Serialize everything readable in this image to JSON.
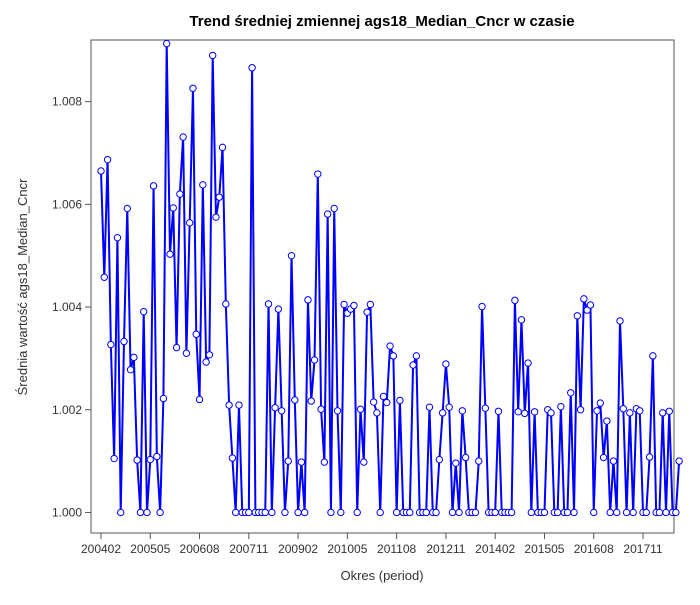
{
  "chart_data": {
    "type": "line",
    "title": "Trend średniej zmiennej ags18_Median_Cncr w czasie",
    "xlabel": "Okres (period)",
    "ylabel": "Średnia wartość ags18_Median_Cncr",
    "ylim": [
      0.9996,
      1.0092
    ],
    "yticks": [
      "1.000",
      "1.002",
      "1.004",
      "1.006",
      "1.008"
    ],
    "xticks": [
      "200402",
      "200505",
      "200608",
      "200711",
      "200902",
      "201005",
      "201108",
      "201211",
      "201402",
      "201505",
      "201608",
      "201711"
    ],
    "grid": false,
    "legend": "none",
    "series": [
      {
        "color": "#0000ff",
        "marker": "open-circle",
        "x_start": "200402",
        "x_end": "201806",
        "values": [
          1.00665,
          1.00458,
          1.00687,
          1.00327,
          1.00105,
          1.00535,
          1.0,
          1.00333,
          1.00592,
          1.00278,
          1.00302,
          1.00102,
          1.0,
          1.00391,
          1.0,
          1.00103,
          1.00636,
          1.00109,
          1.0,
          1.00222,
          1.00913,
          1.00503,
          1.00593,
          1.00321,
          1.0062,
          1.00731,
          1.0031,
          1.00564,
          1.00826,
          1.00347,
          1.0022,
          1.00638,
          1.00293,
          1.00307,
          1.0089,
          1.00575,
          1.00614,
          1.00711,
          1.00406,
          1.00209,
          1.00106,
          1.0,
          1.00209,
          1.0,
          1.0,
          1.0,
          1.00866,
          1.0,
          1.0,
          1.0,
          1.0,
          1.00406,
          1.0,
          1.00204,
          1.00396,
          1.00198,
          1.0,
          1.001,
          1.005,
          1.00219,
          1.0,
          1.00098,
          1.0,
          1.00414,
          1.00217,
          1.00297,
          1.00659,
          1.00201,
          1.00098,
          1.00581,
          1.0,
          1.00592,
          1.00198,
          1.0,
          1.00405,
          1.00388,
          1.00396,
          1.00403,
          1.0,
          1.00201,
          1.00098,
          1.0039,
          1.00405,
          1.00215,
          1.00194,
          1.0,
          1.00226,
          1.00214,
          1.00324,
          1.00305,
          1.0,
          1.00218,
          1.0,
          1.0,
          1.0,
          1.00287,
          1.00305,
          1.0,
          1.0,
          1.0,
          1.00205,
          1.0,
          1.0,
          1.00103,
          1.00194,
          1.00289,
          1.00205,
          1.0,
          1.00096,
          1.0,
          1.00198,
          1.00107,
          1.0,
          1.0,
          1.0,
          1.001,
          1.00401,
          1.00203,
          1.0,
          1.0,
          1.0,
          1.00197,
          1.0,
          1.0,
          1.0,
          1.0,
          1.00413,
          1.00196,
          1.00375,
          1.00193,
          1.00291,
          1.0,
          1.00196,
          1.0,
          1.0,
          1.0,
          1.002,
          1.00194,
          1.0,
          1.0,
          1.00206,
          1.0,
          1.0,
          1.00233,
          1.0,
          1.00383,
          1.002,
          1.00416,
          1.00394,
          1.00404,
          1.0,
          1.00198,
          1.00213,
          1.00107,
          1.00178,
          1.0,
          1.001,
          1.0,
          1.00373,
          1.00202,
          1.0,
          1.00194,
          1.0,
          1.00202,
          1.00198,
          1.0,
          1.0,
          1.00108,
          1.00305,
          1.0,
          1.0,
          1.00194,
          1.0,
          1.00197,
          1.0,
          1.0,
          1.001
        ]
      }
    ]
  }
}
